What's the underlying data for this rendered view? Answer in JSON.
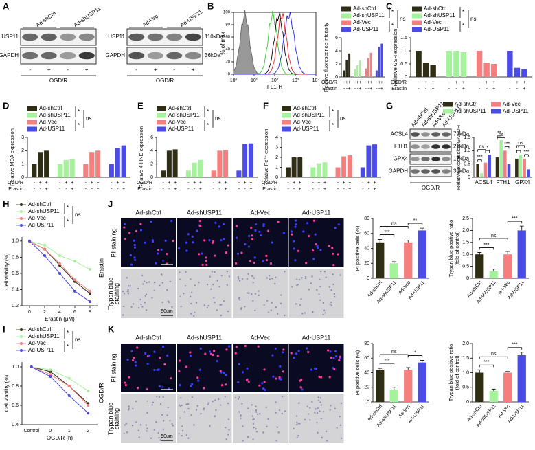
{
  "panel_labels": [
    "A",
    "B",
    "C",
    "D",
    "E",
    "F",
    "G",
    "H",
    "I",
    "J",
    "K"
  ],
  "blots": [
    {
      "columns": [
        "Ad-shCtrl",
        "Ad-shUSP11"
      ],
      "rows": [
        "USP11",
        "GAPDH"
      ],
      "signs": [
        "-",
        "+",
        "-",
        "+"
      ],
      "condition": "OGD/R"
    },
    {
      "columns": [
        "Ad-Vec",
        "Ad-USP11"
      ],
      "rows": [
        "USP11",
        "GAPDH"
      ],
      "sizes": [
        "110kDa",
        "36kDa"
      ],
      "signs": [
        "-",
        "+",
        "-",
        "+"
      ],
      "condition": "OGD/R"
    },
    {
      "columns": [
        "Ad-shCtrl",
        "Ad-shUSP11",
        "Ad-Vec",
        "Ad-USP11"
      ],
      "rows": [
        "ACSL4",
        "FTH1",
        "GPX4",
        "GAPDH"
      ],
      "sizes": [
        "79kDa",
        "21kDa",
        "17kDa",
        "36kDa"
      ],
      "condition": "OGD/R"
    }
  ],
  "flow": {
    "ylabel": "% of max",
    "xlabel": "FL1-H",
    "ylim": [
      0,
      100
    ],
    "yticks": [
      0,
      20,
      40,
      60,
      80,
      100
    ],
    "xticks": [
      "10⁰",
      "10¹",
      "10²",
      "10³",
      "10⁴"
    ]
  },
  "images": [
    {
      "side_label": "Erastin",
      "columns": [
        "Ad-shCtrl",
        "Ad-shUSP11",
        "Ad-Vec",
        "Ad-USP11"
      ],
      "rows": [
        {
          "lines": [
            "PI staining"
          ]
        },
        {
          "lines": [
            "Trypan blue",
            "staining"
          ]
        }
      ],
      "scale_bar": "50um"
    },
    {
      "side_label": "OGD/R",
      "columns": [
        "Ad-shCtrl",
        "Ad-shUSP11",
        "Ad-Vec",
        "Ad-USP11"
      ],
      "rows": [
        {
          "lines": [
            "PI staining"
          ]
        },
        {
          "lines": [
            "Trypan blue",
            "staining"
          ]
        }
      ],
      "scale_bar": "50um"
    }
  ],
  "chart_data": [
    {
      "type": "bar",
      "ylabel": [
        "Relative fluorescence intensity"
      ],
      "ylim": [
        0,
        6
      ],
      "yticks": [
        0,
        2,
        4,
        6
      ],
      "series": [
        {
          "name": "Ad-shCtrl",
          "color": "#2f2e15",
          "values": [
            1,
            2.6,
            3.6
          ]
        },
        {
          "name": "Ad-shUSP11",
          "color": "#a6f29c",
          "values": [
            1.2,
            1.8,
            2.5
          ]
        },
        {
          "name": "Ad-Vec",
          "color": "#f57f7f",
          "values": [
            1.3,
            2.9,
            3.7
          ]
        },
        {
          "name": "Ad-USP11",
          "color": "#4b4be6",
          "values": [
            1,
            4.6,
            5.1
          ]
        }
      ],
      "legend_marks": [
        "*",
        "ns",
        "*"
      ],
      "conditions": [
        {
          "label": "OGD/R",
          "signs": [
            "-",
            "+",
            "+"
          ]
        },
        {
          "label": "Erastin",
          "signs": [
            "-",
            "-",
            "+"
          ]
        }
      ]
    },
    {
      "type": "bar",
      "ylabel": [
        "Relative GSH expression"
      ],
      "ylim": [
        0,
        1.5
      ],
      "yticks": [
        0,
        0.5,
        {
          "value": 1,
          "label": "1.0"
        },
        1.5
      ],
      "series": [
        {
          "name": "Ad-shCtrl",
          "color": "#2f2e15",
          "values": [
            1,
            0.55,
            0.45
          ]
        },
        {
          "name": "Ad-shUSP11",
          "color": "#a6f29c",
          "values": [
            1,
            1,
            0.95
          ]
        },
        {
          "name": "Ad-Vec",
          "color": "#f57f7f",
          "values": [
            1,
            0.55,
            0.5
          ]
        },
        {
          "name": "Ad-USP11",
          "color": "#4b4be6",
          "values": [
            1,
            0.35,
            0.3
          ]
        }
      ],
      "legend_marks": [
        "*",
        "ns",
        "*"
      ],
      "conditions": [
        {
          "label": "OGD/R",
          "signs": [
            "-",
            "+",
            "+"
          ]
        },
        {
          "label": "Erastin",
          "signs": [
            "-",
            "-",
            "+"
          ]
        }
      ]
    },
    {
      "type": "bar",
      "ylabel": [
        "Relative MDA expression"
      ],
      "ylim": [
        0,
        3
      ],
      "yticks": [
        0,
        1,
        2,
        3
      ],
      "series": [
        {
          "name": "Ad-shCtrl",
          "color": "#2f2e15",
          "values": [
            1,
            1.9,
            2
          ]
        },
        {
          "name": "Ad-shUSP11",
          "color": "#a6f29c",
          "values": [
            1,
            1.3,
            1.35
          ]
        },
        {
          "name": "Ad-Vec",
          "color": "#f57f7f",
          "values": [
            1,
            1.9,
            2
          ]
        },
        {
          "name": "Ad-USP11",
          "color": "#4b4be6",
          "values": [
            1,
            2.2,
            2.4
          ]
        }
      ],
      "legend_marks": [
        "*",
        "ns",
        "*"
      ],
      "conditions": [
        {
          "label": "OGD/R",
          "signs": [
            "-",
            "+",
            "+"
          ]
        },
        {
          "label": "Erastin",
          "signs": [
            "-",
            "-",
            "+"
          ]
        }
      ]
    },
    {
      "type": "bar",
      "ylabel": [
        "Relative 4-HNE expression"
      ],
      "ylim": [
        0,
        6
      ],
      "yticks": [
        0,
        2,
        4,
        6
      ],
      "series": [
        {
          "name": "Ad-shCtrl",
          "color": "#2f2e15",
          "values": [
            1,
            4,
            4.2
          ]
        },
        {
          "name": "Ad-shUSP11",
          "color": "#a6f29c",
          "values": [
            1,
            2.2,
            2.6
          ]
        },
        {
          "name": "Ad-Vec",
          "color": "#f57f7f",
          "values": [
            1,
            4,
            4.1
          ]
        },
        {
          "name": "Ad-USP11",
          "color": "#4b4be6",
          "values": [
            1,
            5,
            5.1
          ]
        }
      ],
      "legend_marks": [
        "*",
        "ns",
        "*"
      ],
      "conditions": [
        {
          "label": "OGD/R",
          "signs": [
            "-",
            "+",
            "+"
          ]
        },
        {
          "label": "Erastin",
          "signs": [
            "-",
            "-",
            "+"
          ]
        }
      ]
    },
    {
      "type": "bar",
      "ylabel": [
        "Relative Fe²⁺ expression"
      ],
      "ylim": [
        0,
        4
      ],
      "yticks": [
        0,
        1,
        2,
        3,
        4
      ],
      "series": [
        {
          "name": "Ad-shCtrl",
          "color": "#2f2e15",
          "values": [
            1,
            2,
            2
          ]
        },
        {
          "name": "Ad-shUSP11",
          "color": "#a6f29c",
          "values": [
            1,
            1.4,
            1.5
          ]
        },
        {
          "name": "Ad-Vec",
          "color": "#f57f7f",
          "values": [
            1,
            2.1,
            2.2
          ]
        },
        {
          "name": "Ad-USP11",
          "color": "#4b4be6",
          "values": [
            1,
            3.2,
            3.3
          ]
        }
      ],
      "legend_marks": [
        "*",
        "ns",
        "*"
      ],
      "conditions": [
        {
          "label": "OGD/R",
          "signs": [
            "-",
            "+",
            "+"
          ]
        },
        {
          "label": "Erastin",
          "signs": [
            "-",
            "-",
            "+"
          ]
        }
      ]
    },
    {
      "type": "bar",
      "ylabel": [
        "Relative expression/GAPDH"
      ],
      "ylim": [
        0,
        1.5
      ],
      "yticks": [
        0,
        0.5,
        {
          "value": 1,
          "label": "1.0"
        },
        1.5
      ],
      "categories": [
        "ACSL4",
        "FTH1",
        "GPX4"
      ],
      "series": [
        {
          "name": "Ad-shCtrl",
          "color": "#2f2e15",
          "values": [
            0.5,
            0.75,
            0.7
          ]
        },
        {
          "name": "Ad-shUSP11",
          "color": "#a6f29c",
          "values": [
            0.15,
            1.4,
            0.85
          ]
        },
        {
          "name": "Ad-Vec",
          "color": "#f57f7f",
          "values": [
            0.55,
            1,
            0.7
          ]
        },
        {
          "name": "Ad-USP11",
          "color": "#4b4be6",
          "values": [
            0.85,
            0.5,
            0.3
          ]
        }
      ],
      "comparisons": [
        {
          "category": "ACSL4",
          "from": "Ad-shCtrl",
          "to": "Ad-shUSP11",
          "label": "***"
        },
        {
          "category": "ACSL4",
          "from": "Ad-shCtrl",
          "to": "Ad-Vec",
          "label": "ns"
        },
        {
          "category": "ACSL4",
          "from": "Ad-Vec",
          "to": "Ad-USP11",
          "label": "*"
        },
        {
          "category": "FTH1",
          "from": "Ad-shCtrl",
          "to": "Ad-shUSP11",
          "label": "**"
        },
        {
          "category": "FTH1",
          "from": "Ad-shCtrl",
          "to": "Ad-Vec",
          "label": "ns"
        },
        {
          "category": "FTH1",
          "from": "Ad-Vec",
          "to": "Ad-USP11",
          "label": "***"
        },
        {
          "category": "GPX4",
          "from": "Ad-shCtrl",
          "to": "Ad-shUSP11",
          "label": "*"
        },
        {
          "category": "GPX4",
          "from": "Ad-shCtrl",
          "to": "Ad-Vec",
          "label": "ns"
        },
        {
          "category": "GPX4",
          "from": "Ad-Vec",
          "to": "Ad-USP11",
          "label": "***"
        }
      ]
    },
    {
      "type": "line",
      "ylabel": [
        "Cell viability (%)"
      ],
      "xlabel": "Erastin (μM)",
      "x": [
        0,
        2,
        4,
        6,
        8
      ],
      "xlim": [
        -1,
        9
      ],
      "xticks": [
        0,
        2,
        4,
        6,
        8
      ],
      "ylim": [
        0.2,
        1.05
      ],
      "yticks": [
        0.2,
        0.4,
        0.6,
        0.8,
        {
          "value": 1,
          "label": "1.0"
        }
      ],
      "series": [
        {
          "name": "Ad-shCtrl",
          "color": "#2f2e15",
          "values": [
            1,
            0.9,
            0.7,
            0.5,
            0.35
          ]
        },
        {
          "name": "Ad-shUSP11",
          "color": "#a6f29c",
          "values": [
            1,
            0.95,
            0.82,
            0.75,
            0.65
          ]
        },
        {
          "name": "Ad-Vec",
          "color": "#f57f7f",
          "values": [
            1,
            0.9,
            0.72,
            0.52,
            0.38
          ]
        },
        {
          "name": "Ad-USP11",
          "color": "#4b4be6",
          "values": [
            1,
            0.82,
            0.6,
            0.38,
            0.25
          ]
        }
      ],
      "legend_marks": [
        "*",
        "ns",
        "*"
      ]
    },
    {
      "type": "line",
      "ylabel": [
        "Cell viability (%)"
      ],
      "xlabel": "OGD/R (h)",
      "categories": [
        "Control",
        "0",
        "1",
        "2"
      ],
      "ylim": [
        0.4,
        1.05
      ],
      "yticks": [
        0.4,
        0.6,
        0.8,
        {
          "value": 1,
          "label": "1.0"
        }
      ],
      "series": [
        {
          "name": "Ad-shCtrl",
          "color": "#2f2e15",
          "values": [
            1,
            0.95,
            0.8,
            0.62
          ]
        },
        {
          "name": "Ad-shUSP11",
          "color": "#a6f29c",
          "values": [
            1,
            0.97,
            0.88,
            0.75
          ]
        },
        {
          "name": "Ad-Vec",
          "color": "#f57f7f",
          "values": [
            1,
            0.92,
            0.8,
            0.6
          ]
        },
        {
          "name": "Ad-USP11",
          "color": "#4b4be6",
          "values": [
            1,
            0.9,
            0.7,
            0.52
          ]
        }
      ],
      "legend_marks": [
        "*",
        "ns",
        "*"
      ]
    },
    {
      "type": "bar",
      "ylabel": [
        "PI positive cells (%)"
      ],
      "ylim": [
        0,
        80
      ],
      "yticks": [
        0,
        20,
        40,
        60,
        80
      ],
      "categories": [
        "Ad-shCtrl",
        "Ad-shUSP11",
        "Ad-Vec",
        "Ad-USP11"
      ],
      "values": [
        48,
        20,
        48,
        64
      ],
      "errors": [
        4,
        2,
        3,
        3
      ],
      "colors": [
        "#2f2e15",
        "#a6f29c",
        "#f57f7f",
        "#4b4be6"
      ],
      "comparisons": [
        {
          "from": "Ad-shCtrl",
          "to": "Ad-shUSP11",
          "label": "***"
        },
        {
          "from": "Ad-Vec",
          "to": "Ad-USP11",
          "label": "**"
        },
        {
          "from": "Ad-shCtrl",
          "to": "Ad-Vec",
          "label": "ns"
        }
      ]
    },
    {
      "type": "bar",
      "ylabel": [
        "Trypan blue positive ratio",
        "(fold of control)"
      ],
      "ylim": [
        0,
        2.5
      ],
      "yticks": [
        0,
        0.5,
        {
          "value": 1,
          "label": "1.0"
        },
        1.5,
        {
          "value": 2,
          "label": "2.0"
        },
        2.5
      ],
      "categories": [
        "Ad-shCtrl",
        "Ad-shUSP11",
        "Ad-Vec",
        "Ad-USP11"
      ],
      "values": [
        1,
        0.3,
        1,
        2
      ],
      "errors": [
        0.08,
        0.08,
        0.12,
        0.18
      ],
      "colors": [
        "#2f2e15",
        "#a6f29c",
        "#f57f7f",
        "#4b4be6"
      ],
      "comparisons": [
        {
          "from": "Ad-shCtrl",
          "to": "Ad-shUSP11",
          "label": "***"
        },
        {
          "from": "Ad-Vec",
          "to": "Ad-USP11",
          "label": "***"
        },
        {
          "from": "Ad-shCtrl",
          "to": "Ad-Vec",
          "label": "ns"
        }
      ]
    },
    {
      "type": "bar",
      "ylabel": [
        "PI positive cells (%)"
      ],
      "ylim": [
        0,
        80
      ],
      "yticks": [
        0,
        20,
        40,
        60,
        80
      ],
      "categories": [
        "Ad-shCtrl",
        "Ad-shUSP11",
        "Ad-Vec",
        "Ad-USP11"
      ],
      "values": [
        44,
        17,
        44,
        54
      ],
      "errors": [
        2,
        3,
        3,
        3
      ],
      "colors": [
        "#2f2e15",
        "#a6f29c",
        "#f57f7f",
        "#4b4be6"
      ],
      "comparisons": [
        {
          "from": "Ad-shCtrl",
          "to": "Ad-shUSP11",
          "label": "***"
        },
        {
          "from": "Ad-Vec",
          "to": "Ad-USP11",
          "label": "*"
        },
        {
          "from": "Ad-shCtrl",
          "to": "Ad-Vec",
          "label": "ns"
        }
      ]
    },
    {
      "type": "bar",
      "ylabel": [
        "Trypan blue positive ratio",
        "(fold of control)"
      ],
      "ylim": [
        0,
        2
      ],
      "yticks": [
        0,
        0.5,
        {
          "value": 1,
          "label": "1.0"
        },
        1.5,
        {
          "value": 2,
          "label": "2.0"
        }
      ],
      "categories": [
        "Ad-shCtrl",
        "Ad-shUSP11",
        "Ad-Vec",
        "Ad-USP11"
      ],
      "values": [
        1,
        0.38,
        1,
        1.6
      ],
      "errors": [
        0.1,
        0.06,
        0.04,
        0.1
      ],
      "colors": [
        "#2f2e15",
        "#a6f29c",
        "#f57f7f",
        "#4b4be6"
      ],
      "comparisons": [
        {
          "from": "Ad-shCtrl",
          "to": "Ad-shUSP11",
          "label": "***"
        },
        {
          "from": "Ad-Vec",
          "to": "Ad-USP11",
          "label": "***"
        },
        {
          "from": "Ad-shCtrl",
          "to": "Ad-Vec",
          "label": "ns"
        }
      ]
    }
  ]
}
